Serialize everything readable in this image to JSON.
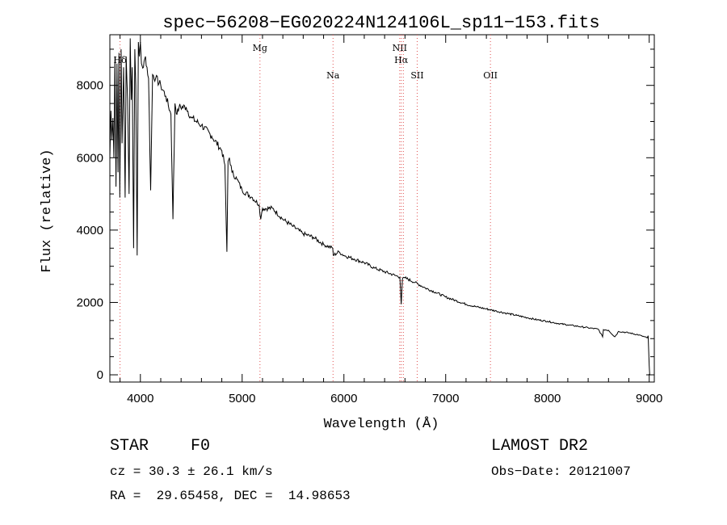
{
  "chart_data": {
    "type": "line",
    "title": "spec−56208−EG020224N124106L_sp11−153.fits",
    "xlabel": "Wavelength (Å)",
    "ylabel": "Flux (relative)",
    "xlim": [
      3700,
      9050
    ],
    "ylim": [
      -200,
      9400
    ],
    "xticks": [
      4000,
      5000,
      6000,
      7000,
      8000,
      9000
    ],
    "yticks": [
      0,
      2000,
      4000,
      6000,
      8000
    ],
    "series": [
      {
        "name": "flux",
        "x": [
          3700,
          3710,
          3720,
          3730,
          3740,
          3750,
          3760,
          3770,
          3780,
          3790,
          3798,
          3810,
          3820,
          3835,
          3850,
          3860,
          3875,
          3889,
          3900,
          3910,
          3920,
          3933,
          3945,
          3955,
          3968,
          3980,
          3990,
          4000,
          4010,
          4030,
          4050,
          4080,
          4101,
          4120,
          4150,
          4200,
          4250,
          4300,
          4320,
          4340,
          4360,
          4380,
          4450,
          4500,
          4600,
          4700,
          4800,
          4830,
          4850,
          4861,
          4875,
          4900,
          4950,
          5000,
          5100,
          5167,
          5183,
          5200,
          5300,
          5400,
          5500,
          5600,
          5700,
          5800,
          5890,
          5896,
          5950,
          6000,
          6100,
          6200,
          6300,
          6400,
          6500,
          6550,
          6563,
          6575,
          6600,
          6700,
          6800,
          6900,
          7000,
          7100,
          7200,
          7300,
          7400,
          7500,
          7600,
          7700,
          7800,
          7900,
          8000,
          8100,
          8200,
          8300,
          8400,
          8500,
          8542,
          8550,
          8600,
          8662,
          8700,
          8800,
          8900,
          8980,
          8990,
          9000,
          9005
        ],
        "y": [
          6000,
          7300,
          6500,
          7100,
          6000,
          8800,
          5200,
          8600,
          5600,
          8900,
          4900,
          9000,
          6400,
          8500,
          4900,
          8800,
          7600,
          5000,
          9300,
          7600,
          8500,
          3500,
          9000,
          8000,
          3300,
          9200,
          8800,
          9200,
          8600,
          8500,
          8800,
          8200,
          5100,
          8300,
          8200,
          8000,
          7700,
          7200,
          4300,
          7500,
          7200,
          7400,
          7400,
          7100,
          6900,
          6600,
          6200,
          5800,
          3400,
          5900,
          6000,
          5600,
          5400,
          5100,
          4900,
          4700,
          4300,
          4600,
          4600,
          4300,
          4100,
          3900,
          3800,
          3600,
          3500,
          3300,
          3400,
          3300,
          3200,
          3100,
          2950,
          2850,
          2750,
          2700,
          1950,
          2650,
          2680,
          2550,
          2400,
          2280,
          2150,
          2050,
          1950,
          1880,
          1820,
          1760,
          1700,
          1640,
          1580,
          1520,
          1480,
          1420,
          1380,
          1340,
          1300,
          1260,
          1050,
          1250,
          1230,
          1050,
          1200,
          1160,
          1100,
          1020,
          1080,
          250,
          0
        ]
      }
    ],
    "lines": [
      {
        "label": "Hδ",
        "x": 3800,
        "row": 1
      },
      {
        "label": "Mg",
        "x": 5175,
        "row": 0
      },
      {
        "label": "Na",
        "x": 5893,
        "row": 2
      },
      {
        "label": "NII",
        "x": 6548,
        "row": 0
      },
      {
        "label": "Hα",
        "x": 6563,
        "row": 1
      },
      {
        "label": "NII",
        "x": 6584,
        "row": -1
      },
      {
        "label": "SII",
        "x": 6720,
        "row": 2
      },
      {
        "label": "OII",
        "x": 7440,
        "row": 2
      }
    ]
  },
  "info": {
    "object_type": "STAR",
    "subclass": "F0",
    "survey": "LAMOST DR2",
    "cz": "cz = 30.3 ± 26.1 km/s",
    "obs_date": "Obs−Date: 20121007",
    "coords": "RA =  29.65458, DEC =  14.98653"
  }
}
